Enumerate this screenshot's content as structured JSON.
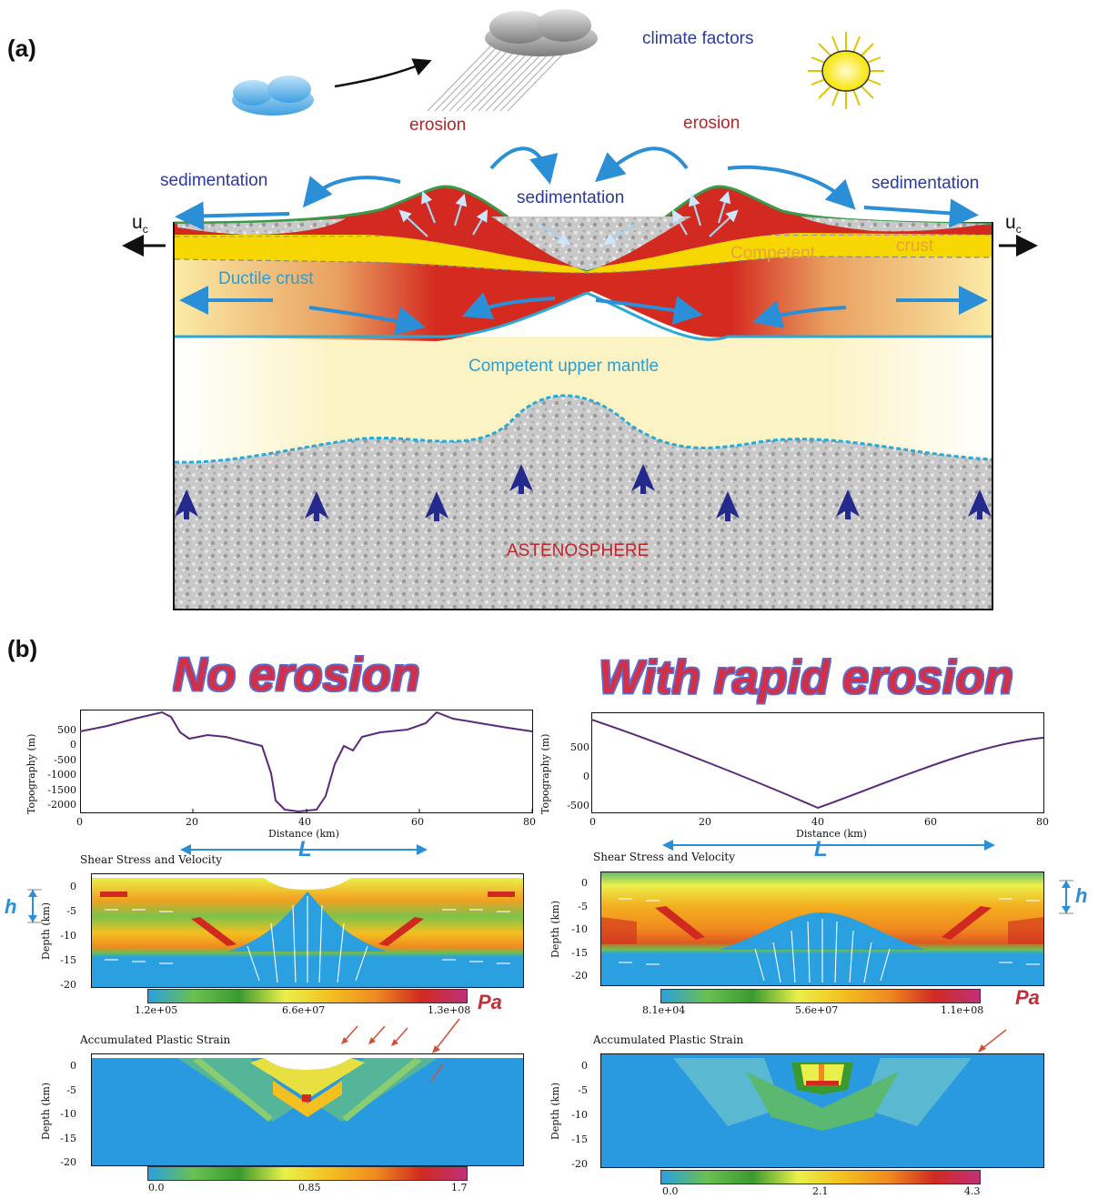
{
  "panel_a": {
    "label": "(a)",
    "climate_factors": "climate factors",
    "erosion_left": "erosion",
    "erosion_right": "erosion",
    "sedimentation_left": "sedimentation",
    "sedimentation_center": "sedimentation",
    "sedimentation_right": "sedimentation",
    "uc_left": "u",
    "uc_right": "u",
    "uc_sub": "c",
    "competent_crust_1": "Competent",
    "competent_crust_2": "crust",
    "ductile_crust": "Ductile crust",
    "upper_mantle": "Competent upper mantle",
    "astenosphere": "ASTENOSPHERE"
  },
  "panel_b": {
    "label": "(b)",
    "title_left": "No erosion",
    "title_right": "With rapid erosion",
    "L_label": "L",
    "h_label": "h",
    "pa_label": "Pa",
    "left": {
      "topo_ylabel": "Topography (m)",
      "topo_xlabel": "Distance (km)",
      "topo_yticks": [
        "500",
        "0",
        "-500",
        "-1000",
        "-1500",
        "-2000"
      ],
      "topo_xticks": [
        "0",
        "20",
        "40",
        "60",
        "80"
      ],
      "stress_title": "Shear Stress and Velocity",
      "depth_label": "Depth (km)",
      "depth_ticks": [
        "0",
        "-5",
        "-10",
        "-15",
        "-20"
      ],
      "stress_cbar": [
        "1.2e+05",
        "6.6e+07",
        "1.3e+08"
      ],
      "strain_title": "Accumulated Plastic Strain",
      "strain_cbar": [
        "0.0",
        "0.85",
        "1.7"
      ]
    },
    "right": {
      "topo_ylabel": "Topography (m)",
      "topo_xlabel": "Distance (km)",
      "topo_yticks": [
        "500",
        "0",
        "-500"
      ],
      "topo_xticks": [
        "0",
        "20",
        "40",
        "60",
        "80"
      ],
      "stress_title": "Shear Stress and Velocity",
      "depth_label": "Depth (km)",
      "depth_ticks": [
        "0",
        "-5",
        "-10",
        "-15",
        "-20"
      ],
      "stress_cbar": [
        "8.1e+04",
        "5.6e+07",
        "1.1e+08"
      ],
      "strain_title": "Accumulated Plastic Strain",
      "strain_cbar": [
        "0.0",
        "2.1",
        "4.3"
      ]
    }
  },
  "colors": {
    "title_red": "#d0304a",
    "label_blue": "#2b3a9c",
    "erosion_red": "#b3262a",
    "arrow_cyan": "#2a9fd6",
    "topo_purple": "#5a2a7a"
  }
}
